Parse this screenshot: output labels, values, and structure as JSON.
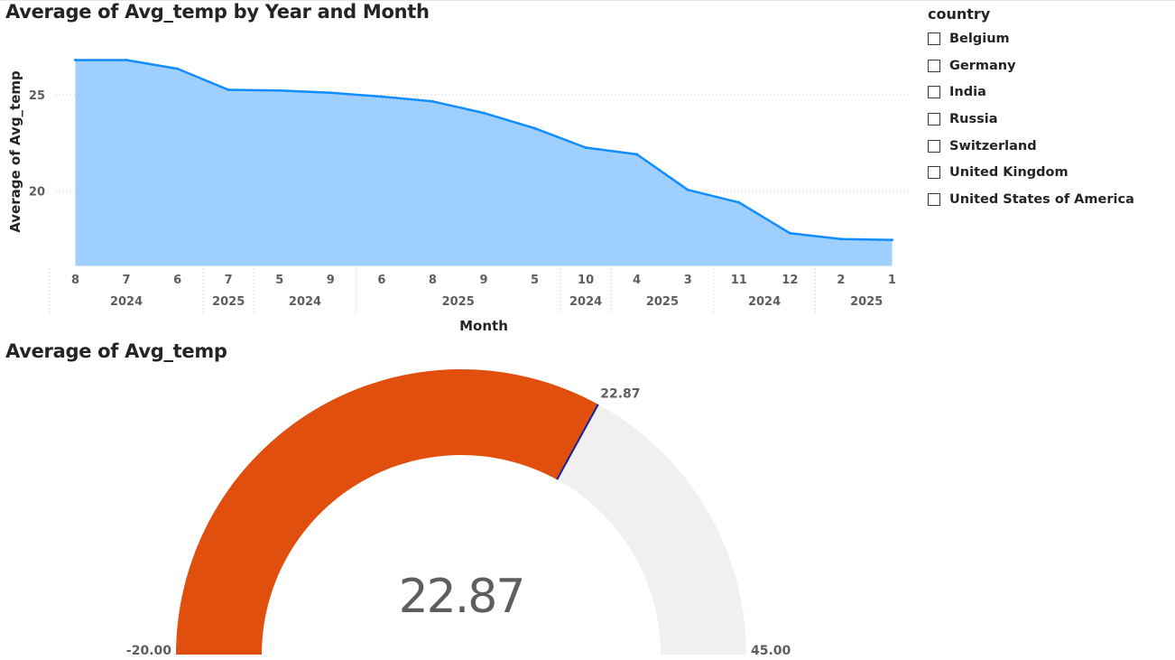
{
  "charts": {
    "area": {
      "title": "Average of Avg_temp by Year and Month"
    },
    "gauge": {
      "title": "Average of Avg_temp"
    }
  },
  "slicer": {
    "header": "country",
    "items": [
      {
        "label": "Belgium"
      },
      {
        "label": "Germany"
      },
      {
        "label": "India"
      },
      {
        "label": "Russia"
      },
      {
        "label": "Switzerland"
      },
      {
        "label": "United Kingdom"
      },
      {
        "label": "United States of America"
      }
    ]
  },
  "colors": {
    "area_fill": "#9fcffd",
    "area_line": "#118dff",
    "gauge_value": "#e04f0e",
    "gauge_remaining": "#f1f0ef",
    "gauge_marker": "#12239e",
    "text": "#252423",
    "axis_text": "#605e5c"
  },
  "chart_data": [
    {
      "type": "area",
      "title": "Average of Avg_temp by Year and Month",
      "xlabel": "Month",
      "ylabel": "Average of Avg_temp",
      "yticks": [
        20,
        25
      ],
      "ylim": [
        16.1,
        27.5
      ],
      "grid": true,
      "categories": [
        {
          "month": "8",
          "year": "2024"
        },
        {
          "month": "7",
          "year": "2024"
        },
        {
          "month": "6",
          "year": "2024"
        },
        {
          "month": "7",
          "year": "2025"
        },
        {
          "month": "5",
          "year": "2024"
        },
        {
          "month": "9",
          "year": "2024"
        },
        {
          "month": "6",
          "year": "2025"
        },
        {
          "month": "8",
          "year": "2025"
        },
        {
          "month": "9",
          "year": "2025"
        },
        {
          "month": "5",
          "year": "2025"
        },
        {
          "month": "10",
          "year": "2024"
        },
        {
          "month": "4",
          "year": "2025"
        },
        {
          "month": "3",
          "year": "2025"
        },
        {
          "month": "11",
          "year": "2024"
        },
        {
          "month": "12",
          "year": "2024"
        },
        {
          "month": "2",
          "year": "2025"
        },
        {
          "month": "1",
          "year": "2025"
        }
      ],
      "year_groups": [
        {
          "label": "2024",
          "count": 3
        },
        {
          "label": "2025",
          "count": 1
        },
        {
          "label": "2024",
          "count": 2
        },
        {
          "label": "2025",
          "count": 4
        },
        {
          "label": "2024",
          "count": 1
        },
        {
          "label": "2025",
          "count": 2
        },
        {
          "label": "2024",
          "count": 2
        },
        {
          "label": "2025",
          "count": 2
        }
      ],
      "values": [
        26.8,
        26.8,
        26.35,
        25.25,
        25.22,
        25.1,
        24.9,
        24.65,
        24.05,
        23.25,
        22.25,
        21.9,
        20.05,
        19.4,
        17.8,
        17.5,
        17.45
      ]
    },
    {
      "type": "gauge",
      "title": "Average of Avg_temp",
      "value": 22.87,
      "value_label": "22.87",
      "min": -20,
      "min_label": "-20.00",
      "max": 45,
      "max_label": "45.00",
      "target_label": "22.87"
    }
  ]
}
